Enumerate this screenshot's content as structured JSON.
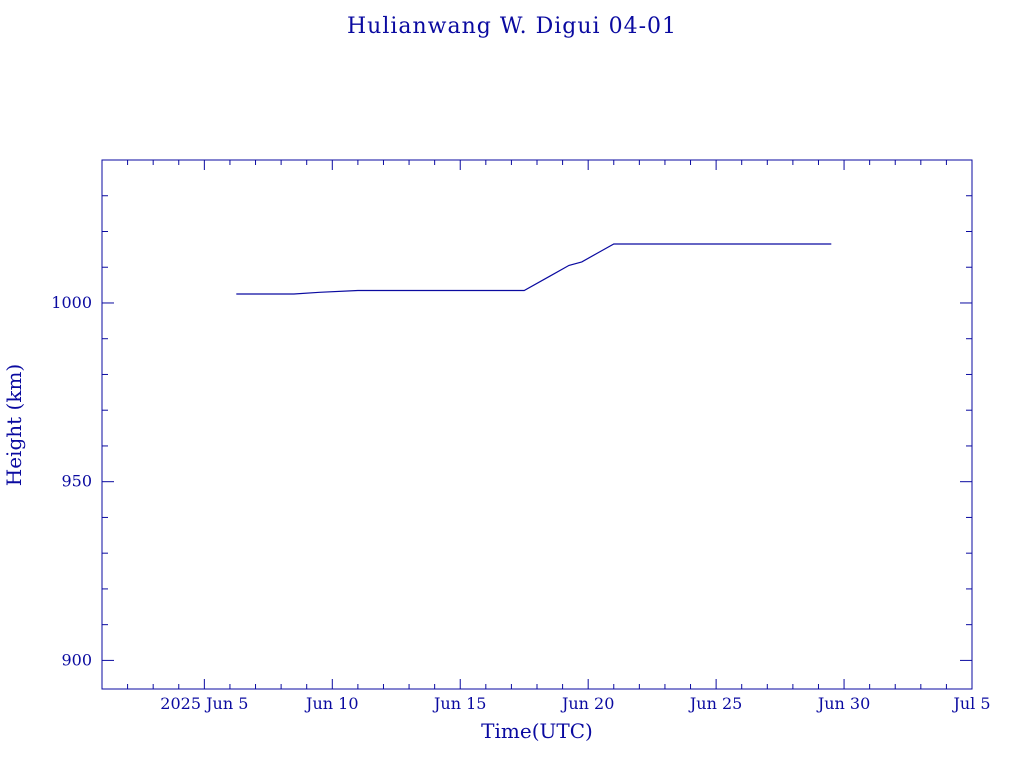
{
  "chart_data": {
    "type": "line",
    "title": "Hulianwang W. Digui 04-01",
    "xlabel": "Time(UTC)",
    "ylabel": "Height (km)",
    "xlim": [
      "2025-06-01",
      "2025-07-05"
    ],
    "ylim": [
      892,
      1040
    ],
    "x_tick_labels": [
      "2025 Jun  5",
      "Jun 10",
      "Jun 15",
      "Jun 20",
      "Jun 25",
      "Jun 30",
      "Jul  5"
    ],
    "x_tick_values": [
      "2025-06-05",
      "2025-06-10",
      "2025-06-15",
      "2025-06-20",
      "2025-06-25",
      "2025-06-30",
      "2025-07-05"
    ],
    "y_tick_labels": [
      "900",
      "950",
      "1000"
    ],
    "y_tick_values": [
      900,
      950,
      1000
    ],
    "line_color": "#0a0aa0",
    "series": [
      {
        "x": [
          "2025-06-06 06:00",
          "2025-06-08 12:00",
          "2025-06-09 12:00",
          "2025-06-11",
          "2025-06-14",
          "2025-06-17 12:00",
          "2025-06-18 12:00",
          "2025-06-19 06:00",
          "2025-06-19 18:00",
          "2025-06-20 12:00",
          "2025-06-21",
          "2025-06-25",
          "2025-06-29 12:00"
        ],
        "y": [
          1002.5,
          1002.5,
          1003,
          1003.5,
          1003.5,
          1003.5,
          1007.5,
          1010.5,
          1011.5,
          1014.5,
          1016.5,
          1016.5,
          1016.5
        ]
      }
    ]
  }
}
